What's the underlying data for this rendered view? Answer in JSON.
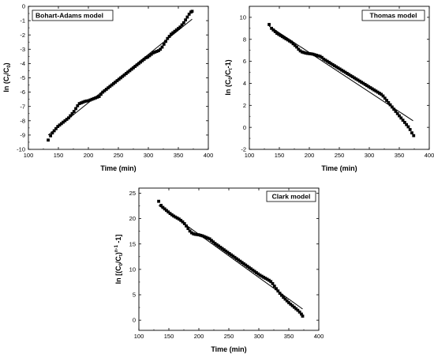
{
  "chart_data": [
    {
      "type": "scatter",
      "legend": "Bohart-Adams model",
      "xlabel": "Time (min)",
      "ylabel_main": "ln (C",
      "ylabel_sub1": "t",
      "ylabel_mid": "/C",
      "ylabel_sub2": "0",
      "ylabel_end": ")",
      "xlim": [
        100,
        400
      ],
      "ylim": [
        -10,
        0
      ],
      "xticks": [
        100,
        150,
        200,
        250,
        300,
        350,
        400
      ],
      "yticks": [
        -10,
        -9,
        -8,
        -7,
        -6,
        -5,
        -4,
        -3,
        -2,
        -1,
        0
      ],
      "xtick_labels": [
        "100",
        "150",
        "200",
        "250",
        "300",
        "350",
        "400"
      ],
      "ytick_labels": [
        "-10",
        "-9",
        "-8",
        "-7",
        "-6",
        "-5",
        "-4",
        "-3",
        "-2",
        "-1",
        "0"
      ],
      "legend_position": "top-left",
      "fit_line": {
        "x": [
          133,
          373
        ],
        "y": [
          -9.0,
          -0.9
        ]
      },
      "series": [
        {
          "marker": "square",
          "points": [
            [
              133,
              -9.35
            ],
            [
              137,
              -9.05
            ],
            [
              140,
              -8.85
            ],
            [
              143,
              -8.7
            ],
            [
              146,
              -8.55
            ],
            [
              149,
              -8.4
            ],
            [
              152,
              -8.3
            ],
            [
              155,
              -8.2
            ],
            [
              158,
              -8.1
            ],
            [
              161,
              -8.0
            ],
            [
              164,
              -7.9
            ],
            [
              167,
              -7.8
            ],
            [
              170,
              -7.65
            ],
            [
              173,
              -7.5
            ],
            [
              176,
              -7.35
            ],
            [
              179,
              -7.15
            ],
            [
              182,
              -6.95
            ],
            [
              185,
              -6.8
            ],
            [
              188,
              -6.75
            ],
            [
              191,
              -6.7
            ],
            [
              194,
              -6.65
            ],
            [
              197,
              -6.62
            ],
            [
              200,
              -6.6
            ],
            [
              203,
              -6.55
            ],
            [
              206,
              -6.5
            ],
            [
              209,
              -6.45
            ],
            [
              212,
              -6.4
            ],
            [
              215,
              -6.35
            ],
            [
              218,
              -6.3
            ],
            [
              221,
              -6.15
            ],
            [
              224,
              -6.0
            ],
            [
              227,
              -5.9
            ],
            [
              230,
              -5.8
            ],
            [
              233,
              -5.7
            ],
            [
              236,
              -5.6
            ],
            [
              239,
              -5.5
            ],
            [
              242,
              -5.4
            ],
            [
              245,
              -5.3
            ],
            [
              248,
              -5.2
            ],
            [
              251,
              -5.1
            ],
            [
              254,
              -5.0
            ],
            [
              257,
              -4.9
            ],
            [
              260,
              -4.8
            ],
            [
              263,
              -4.7
            ],
            [
              266,
              -4.6
            ],
            [
              269,
              -4.5
            ],
            [
              272,
              -4.4
            ],
            [
              275,
              -4.3
            ],
            [
              278,
              -4.2
            ],
            [
              281,
              -4.1
            ],
            [
              284,
              -4.0
            ],
            [
              287,
              -3.9
            ],
            [
              290,
              -3.8
            ],
            [
              293,
              -3.7
            ],
            [
              296,
              -3.6
            ],
            [
              299,
              -3.55
            ],
            [
              302,
              -3.45
            ],
            [
              305,
              -3.35
            ],
            [
              308,
              -3.25
            ],
            [
              311,
              -3.2
            ],
            [
              314,
              -3.15
            ],
            [
              317,
              -3.1
            ],
            [
              320,
              -3.0
            ],
            [
              323,
              -2.85
            ],
            [
              326,
              -2.65
            ],
            [
              329,
              -2.45
            ],
            [
              332,
              -2.25
            ],
            [
              335,
              -2.1
            ],
            [
              338,
              -1.95
            ],
            [
              341,
              -1.85
            ],
            [
              344,
              -1.75
            ],
            [
              347,
              -1.65
            ],
            [
              350,
              -1.55
            ],
            [
              353,
              -1.45
            ],
            [
              356,
              -1.3
            ],
            [
              359,
              -1.15
            ],
            [
              362,
              -0.95
            ],
            [
              365,
              -0.75
            ],
            [
              368,
              -0.55
            ],
            [
              371,
              -0.4
            ],
            [
              373,
              -0.35
            ]
          ]
        }
      ]
    },
    {
      "type": "scatter",
      "legend": "Thomas model",
      "xlabel": "Time (min)",
      "ylabel_main": "ln (C",
      "ylabel_sub1": "0",
      "ylabel_mid": "/C",
      "ylabel_sub2": "t",
      "ylabel_end": "-1)",
      "xlim": [
        100,
        400
      ],
      "ylim": [
        -2,
        11
      ],
      "xticks": [
        100,
        150,
        200,
        250,
        300,
        350,
        400
      ],
      "yticks": [
        -2,
        0,
        2,
        4,
        6,
        8,
        10
      ],
      "xtick_labels": [
        "100",
        "150",
        "200",
        "250",
        "300",
        "350",
        "400"
      ],
      "ytick_labels": [
        "-2",
        "0",
        "2",
        "4",
        "6",
        "8",
        "10"
      ],
      "legend_position": "top-right",
      "fit_line": {
        "x": [
          133,
          373
        ],
        "y": [
          9.2,
          0.6
        ]
      },
      "series": [
        {
          "marker": "square",
          "points": [
            [
              133,
              9.35
            ],
            [
              137,
              9.0
            ],
            [
              140,
              8.85
            ],
            [
              143,
              8.7
            ],
            [
              146,
              8.55
            ],
            [
              149,
              8.45
            ],
            [
              152,
              8.35
            ],
            [
              155,
              8.25
            ],
            [
              158,
              8.15
            ],
            [
              161,
              8.05
            ],
            [
              164,
              7.95
            ],
            [
              167,
              7.85
            ],
            [
              170,
              7.75
            ],
            [
              173,
              7.6
            ],
            [
              176,
              7.45
            ],
            [
              179,
              7.3
            ],
            [
              182,
              7.1
            ],
            [
              185,
              6.95
            ],
            [
              188,
              6.85
            ],
            [
              191,
              6.8
            ],
            [
              194,
              6.75
            ],
            [
              197,
              6.72
            ],
            [
              200,
              6.7
            ],
            [
              203,
              6.68
            ],
            [
              206,
              6.65
            ],
            [
              209,
              6.6
            ],
            [
              212,
              6.55
            ],
            [
              215,
              6.5
            ],
            [
              218,
              6.45
            ],
            [
              221,
              6.35
            ],
            [
              224,
              6.2
            ],
            [
              227,
              6.1
            ],
            [
              230,
              6.0
            ],
            [
              233,
              5.9
            ],
            [
              236,
              5.8
            ],
            [
              239,
              5.7
            ],
            [
              242,
              5.6
            ],
            [
              245,
              5.5
            ],
            [
              248,
              5.4
            ],
            [
              251,
              5.3
            ],
            [
              254,
              5.2
            ],
            [
              257,
              5.1
            ],
            [
              260,
              5.0
            ],
            [
              263,
              4.9
            ],
            [
              266,
              4.8
            ],
            [
              269,
              4.7
            ],
            [
              272,
              4.6
            ],
            [
              275,
              4.5
            ],
            [
              278,
              4.4
            ],
            [
              281,
              4.3
            ],
            [
              284,
              4.2
            ],
            [
              287,
              4.1
            ],
            [
              290,
              4.0
            ],
            [
              293,
              3.9
            ],
            [
              296,
              3.8
            ],
            [
              299,
              3.7
            ],
            [
              302,
              3.6
            ],
            [
              305,
              3.5
            ],
            [
              308,
              3.4
            ],
            [
              311,
              3.3
            ],
            [
              314,
              3.2
            ],
            [
              317,
              3.1
            ],
            [
              320,
              3.0
            ],
            [
              323,
              2.85
            ],
            [
              326,
              2.65
            ],
            [
              329,
              2.45
            ],
            [
              332,
              2.25
            ],
            [
              335,
              2.05
            ],
            [
              338,
              1.85
            ],
            [
              341,
              1.65
            ],
            [
              344,
              1.45
            ],
            [
              347,
              1.25
            ],
            [
              350,
              1.05
            ],
            [
              353,
              0.85
            ],
            [
              356,
              0.65
            ],
            [
              359,
              0.45
            ],
            [
              362,
              0.25
            ],
            [
              365,
              0.05
            ],
            [
              368,
              -0.2
            ],
            [
              371,
              -0.5
            ],
            [
              374,
              -0.75
            ]
          ]
        }
      ]
    },
    {
      "type": "scatter",
      "legend": "Clark model",
      "xlabel": "Time (min)",
      "ylabel_main": "ln [(C",
      "ylabel_sub1": "0",
      "ylabel_mid": "/C",
      "ylabel_sub2": "t",
      "ylabel_end": ")",
      "ylabel_sup": "n-1",
      "ylabel_tail": " -1]",
      "xlim": [
        100,
        400
      ],
      "ylim": [
        -2,
        26
      ],
      "xticks": [
        100,
        150,
        200,
        250,
        300,
        350,
        400
      ],
      "yticks": [
        0,
        5,
        10,
        15,
        20,
        25
      ],
      "xtick_labels": [
        "100",
        "150",
        "200",
        "250",
        "300",
        "350",
        "400"
      ],
      "ytick_labels": [
        "0",
        "5",
        "10",
        "15",
        "20",
        "25"
      ],
      "legend_position": "top-right",
      "fit_line": {
        "x": [
          133,
          373
        ],
        "y": [
          22.6,
          2.2
        ]
      },
      "series": [
        {
          "marker": "square",
          "points": [
            [
              133,
              23.4
            ],
            [
              137,
              22.6
            ],
            [
              140,
              22.2
            ],
            [
              143,
              21.9
            ],
            [
              146,
              21.6
            ],
            [
              149,
              21.3
            ],
            [
              152,
              21.0
            ],
            [
              155,
              20.75
            ],
            [
              158,
              20.5
            ],
            [
              161,
              20.3
            ],
            [
              164,
              20.1
            ],
            [
              167,
              19.9
            ],
            [
              170,
              19.65
            ],
            [
              173,
              19.35
            ],
            [
              176,
              19.0
            ],
            [
              179,
              18.55
            ],
            [
              182,
              18.05
            ],
            [
              185,
              17.55
            ],
            [
              188,
              17.2
            ],
            [
              191,
              17.0
            ],
            [
              194,
              16.9
            ],
            [
              197,
              16.85
            ],
            [
              200,
              16.8
            ],
            [
              203,
              16.7
            ],
            [
              206,
              16.6
            ],
            [
              209,
              16.45
            ],
            [
              212,
              16.3
            ],
            [
              215,
              16.15
            ],
            [
              218,
              16.0
            ],
            [
              221,
              15.7
            ],
            [
              224,
              15.4
            ],
            [
              227,
              15.1
            ],
            [
              230,
              14.85
            ],
            [
              233,
              14.6
            ],
            [
              236,
              14.35
            ],
            [
              239,
              14.1
            ],
            [
              242,
              13.85
            ],
            [
              245,
              13.6
            ],
            [
              248,
              13.35
            ],
            [
              251,
              13.1
            ],
            [
              254,
              12.85
            ],
            [
              257,
              12.6
            ],
            [
              260,
              12.35
            ],
            [
              263,
              12.1
            ],
            [
              266,
              11.85
            ],
            [
              269,
              11.6
            ],
            [
              272,
              11.35
            ],
            [
              275,
              11.1
            ],
            [
              278,
              10.85
            ],
            [
              281,
              10.6
            ],
            [
              284,
              10.35
            ],
            [
              287,
              10.1
            ],
            [
              290,
              9.85
            ],
            [
              293,
              9.6
            ],
            [
              296,
              9.35
            ],
            [
              299,
              9.1
            ],
            [
              302,
              8.85
            ],
            [
              305,
              8.65
            ],
            [
              308,
              8.45
            ],
            [
              311,
              8.25
            ],
            [
              314,
              8.05
            ],
            [
              317,
              7.85
            ],
            [
              320,
              7.6
            ],
            [
              323,
              7.2
            ],
            [
              326,
              6.7
            ],
            [
              329,
              6.2
            ],
            [
              332,
              5.75
            ],
            [
              335,
              5.3
            ],
            [
              338,
              4.9
            ],
            [
              341,
              4.5
            ],
            [
              344,
              4.15
            ],
            [
              347,
              3.8
            ],
            [
              350,
              3.45
            ],
            [
              353,
              3.15
            ],
            [
              356,
              2.85
            ],
            [
              359,
              2.55
            ],
            [
              362,
              2.25
            ],
            [
              365,
              1.95
            ],
            [
              368,
              1.6
            ],
            [
              371,
              1.2
            ],
            [
              373,
              0.8
            ]
          ]
        }
      ]
    }
  ]
}
